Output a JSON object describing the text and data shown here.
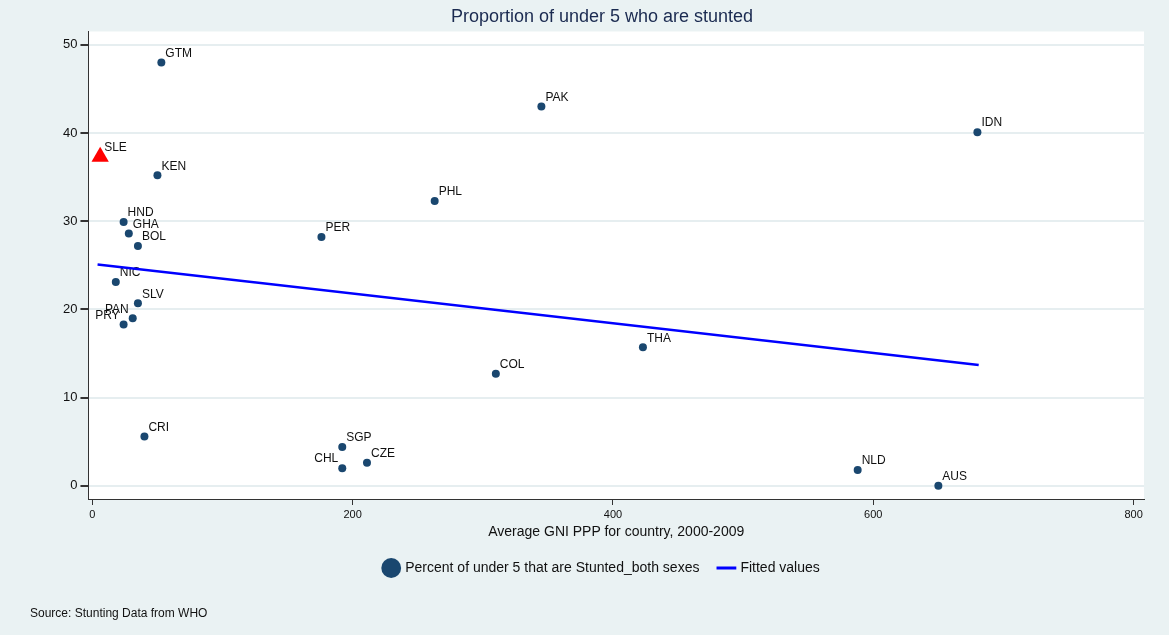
{
  "chart_data": {
    "type": "scatter",
    "title": "Proportion of under 5 who are stunted",
    "xlabel": "Average GNI PPP for country, 2000-2009",
    "xlim": [
      -3,
      808
    ],
    "ylim": [
      -1.5,
      51.5
    ],
    "xticks": [
      0,
      200,
      400,
      600,
      800
    ],
    "yticks": [
      0,
      10,
      20,
      30,
      40,
      50
    ],
    "grid": "y",
    "legend": "bottom",
    "series": [
      {
        "name": "Percent of under 5 that are Stunted_both sexes",
        "type": "scatter",
        "marker": "circle",
        "color": "#1a476f",
        "x": [
          53,
          345,
          680,
          50,
          24,
          28,
          35,
          176,
          263,
          18,
          35,
          31,
          24,
          40,
          192,
          192,
          211,
          310,
          423,
          588,
          650
        ],
        "values": [
          48.0,
          43.0,
          40.1,
          35.2,
          29.9,
          28.6,
          27.2,
          28.2,
          32.3,
          23.1,
          20.7,
          19.0,
          18.3,
          5.6,
          4.4,
          2.0,
          2.6,
          12.7,
          15.7,
          1.8,
          0.0
        ]
      },
      {
        "type": "scatter",
        "marker": "triangle",
        "color": "#ff0000",
        "x": [
          6
        ],
        "values": [
          37.3
        ]
      },
      {
        "name": "Fitted values",
        "type": "line",
        "marker": "none",
        "color": "#0000ff",
        "x": [
          4,
          681
        ],
        "values": [
          25.1,
          13.7
        ]
      }
    ],
    "annotations": [
      {
        "text": "GTM",
        "x": 53,
        "y": 48.0
      },
      {
        "text": "PAK",
        "x": 345,
        "y": 43.0
      },
      {
        "text": "IDN",
        "x": 680,
        "y": 40.1
      },
      {
        "text": "SLE",
        "x": 6,
        "y": 37.3
      },
      {
        "text": "KEN",
        "x": 50,
        "y": 35.2
      },
      {
        "text": "HND",
        "x": 24,
        "y": 29.9
      },
      {
        "text": "GHA",
        "x": 28,
        "y": 28.6
      },
      {
        "text": "BOL",
        "x": 35,
        "y": 27.2
      },
      {
        "text": "PER",
        "x": 176,
        "y": 28.2
      },
      {
        "text": "PHL",
        "x": 263,
        "y": 32.3
      },
      {
        "text": "NIC",
        "x": 18,
        "y": 23.1
      },
      {
        "text": "SLV",
        "x": 35,
        "y": 20.7
      },
      {
        "text": "PAN",
        "x": 31,
        "y": 19.0
      },
      {
        "text": "PRY",
        "x": 24,
        "y": 18.3
      },
      {
        "text": "CRI",
        "x": 40,
        "y": 5.6
      },
      {
        "text": "SGP",
        "x": 192,
        "y": 4.4
      },
      {
        "text": "CHL",
        "x": 192,
        "y": 2.0
      },
      {
        "text": "CZE",
        "x": 211,
        "y": 2.6
      },
      {
        "text": "COL",
        "x": 310,
        "y": 12.7
      },
      {
        "text": "THA",
        "x": 423,
        "y": 15.7
      },
      {
        "text": "NLD",
        "x": 588,
        "y": 1.8
      },
      {
        "text": "AUS",
        "x": 650,
        "y": 0.0
      },
      "Source: Stunting Data from WHO"
    ]
  }
}
